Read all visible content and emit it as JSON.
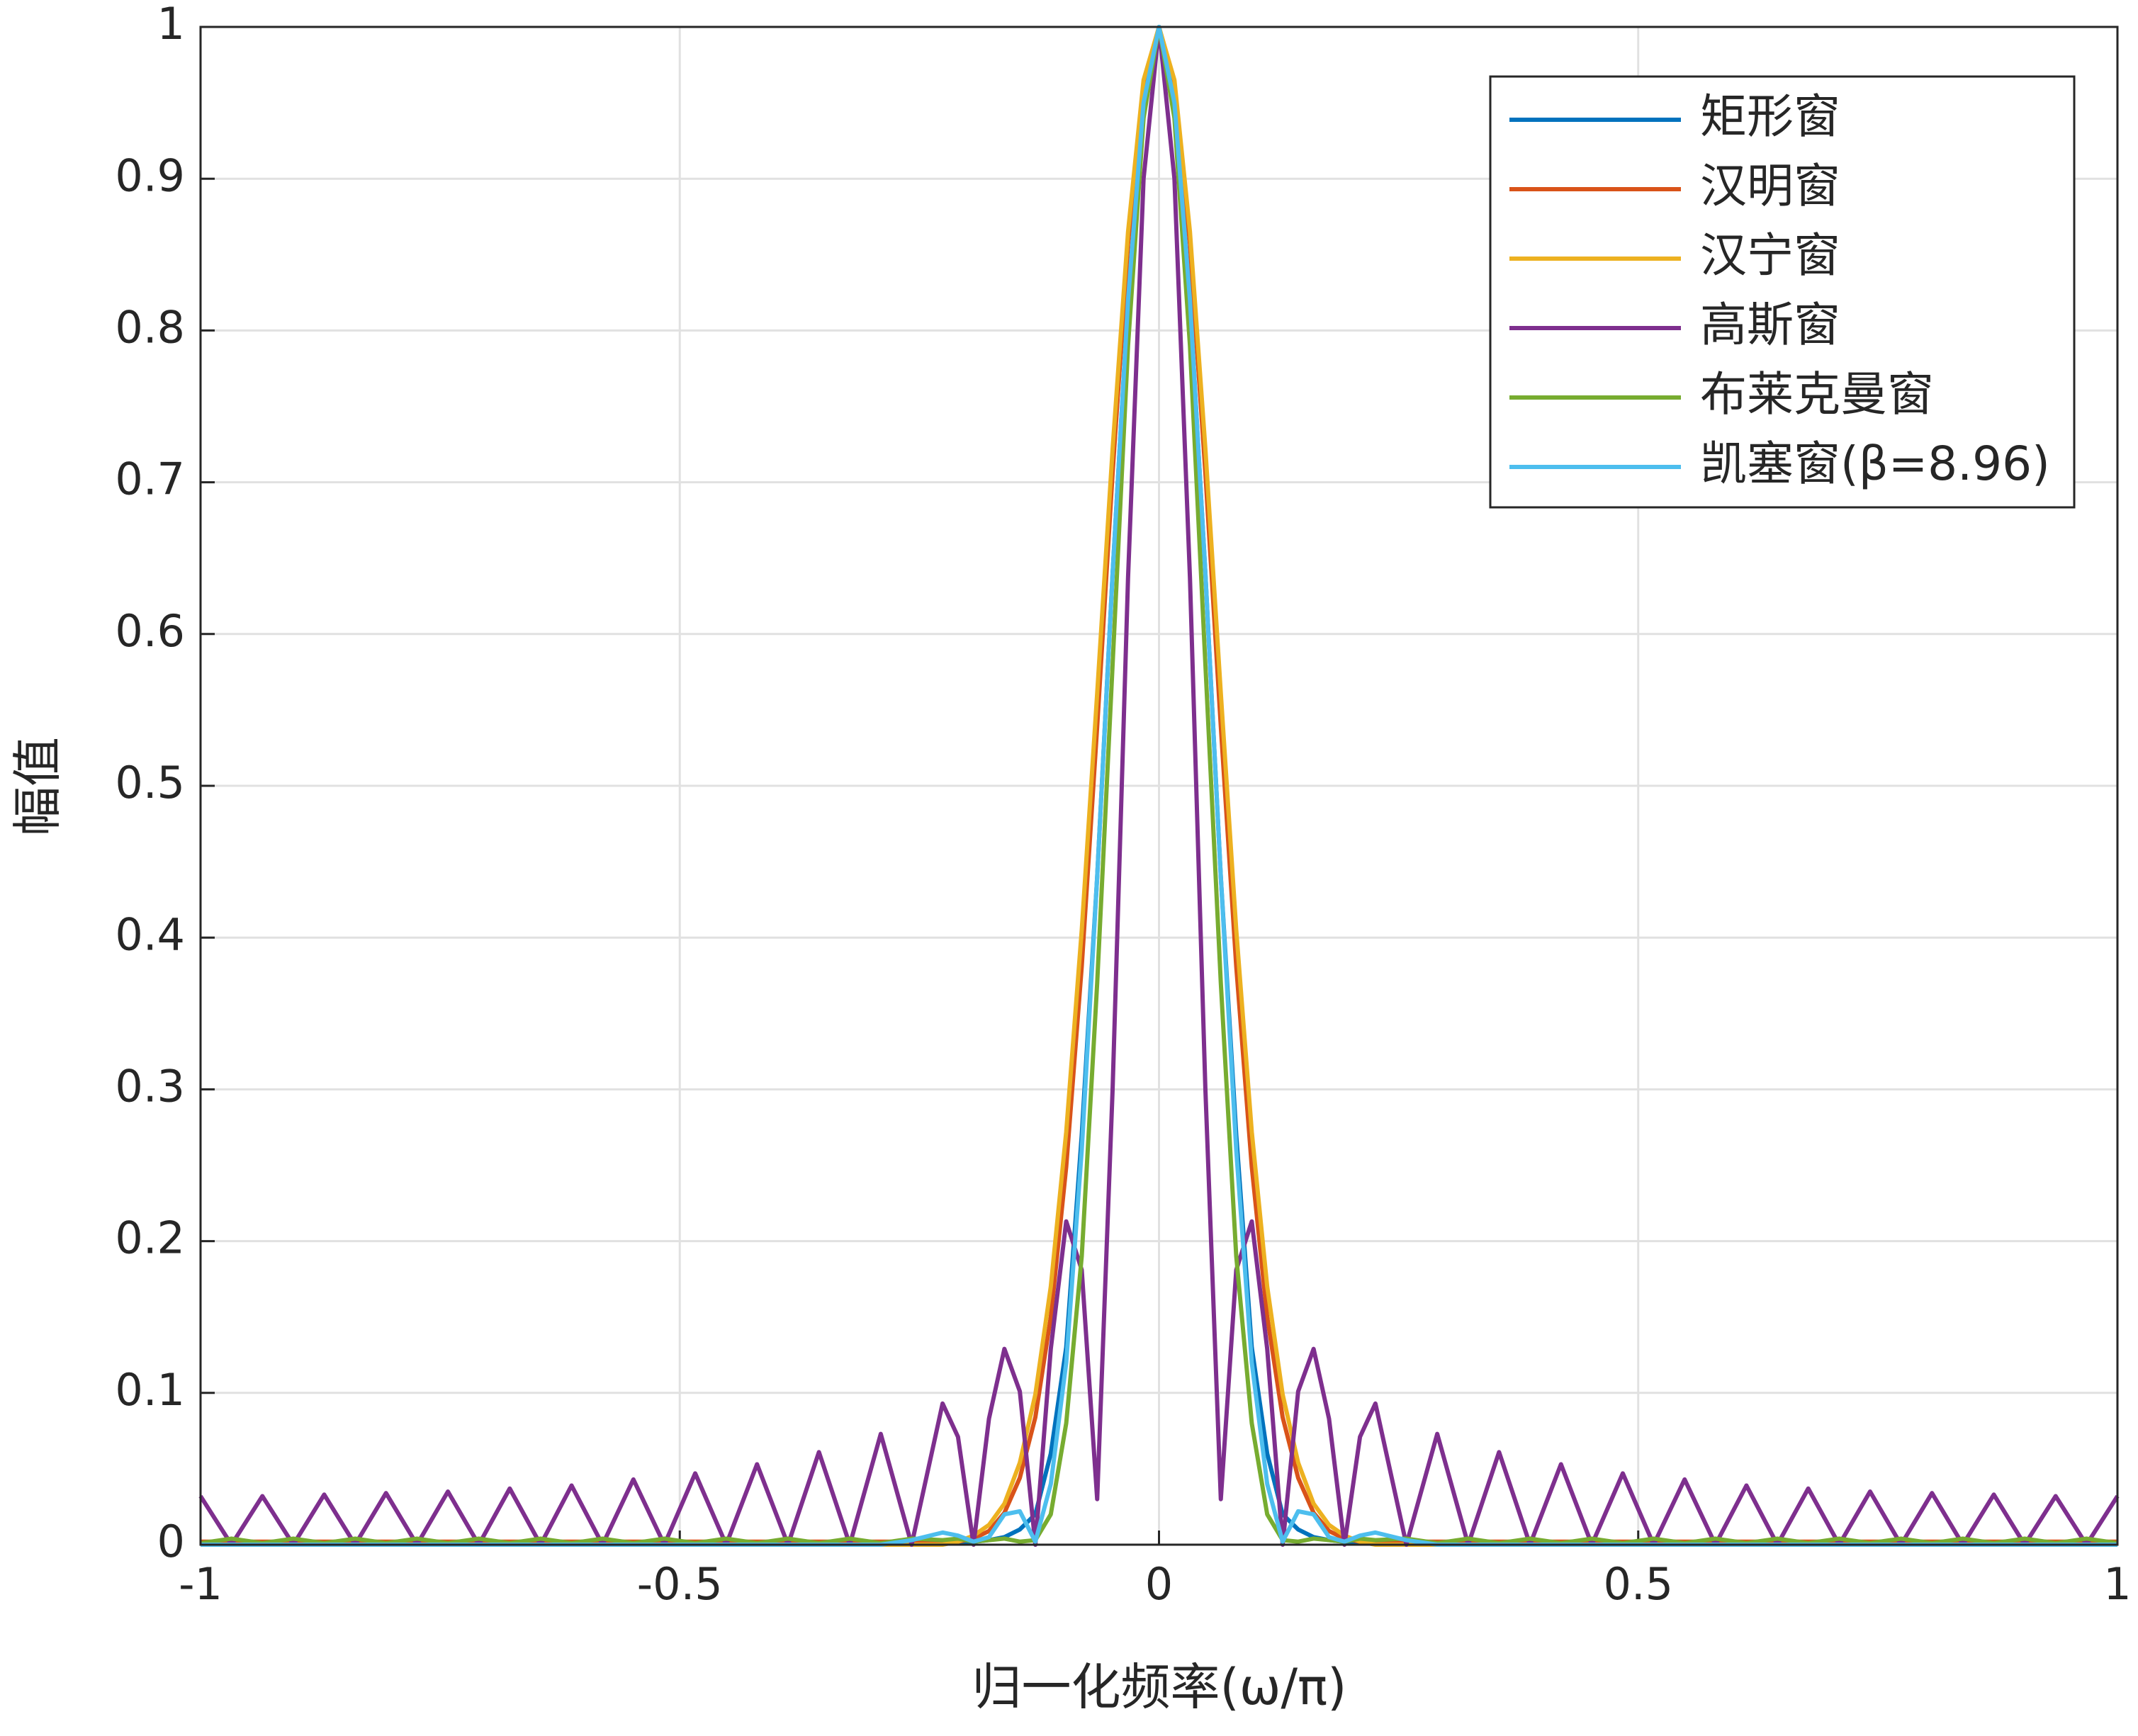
{
  "chart_data": {
    "type": "line",
    "xlabel": "归一化频率(ω/π)",
    "ylabel": "幅值",
    "xlim": [
      -1,
      1
    ],
    "xticks": [
      -1,
      -0.5,
      0,
      0.5,
      1
    ],
    "ylim": [
      0,
      1
    ],
    "yticks": [
      0,
      0.1,
      0.2,
      0.3,
      0.4,
      0.5,
      0.6,
      0.7,
      0.8,
      0.9,
      1
    ],
    "grid": true,
    "legend": "northeast",
    "x": [
      -1,
      -0.9677,
      -0.9355,
      -0.9032,
      -0.871,
      -0.8387,
      -0.8065,
      -0.7742,
      -0.7419,
      -0.7097,
      -0.6774,
      -0.6452,
      -0.6129,
      -0.5806,
      -0.5484,
      -0.5161,
      -0.4839,
      -0.4516,
      -0.4194,
      -0.3871,
      -0.3548,
      -0.3226,
      -0.2903,
      -0.2581,
      -0.2258,
      -0.2097,
      -0.1935,
      -0.1774,
      -0.1613,
      -0.1452,
      -0.129,
      -0.1129,
      -0.0968,
      -0.0806,
      -0.0645,
      -0.0484,
      -0.0323,
      -0.0161,
      0,
      0.0161,
      0.0323,
      0.0484,
      0.0645,
      0.0806,
      0.0968,
      0.1129,
      0.129,
      0.1452,
      0.1613,
      0.1774,
      0.1935,
      0.2097,
      0.2258,
      0.2581,
      0.2903,
      0.3226,
      0.3548,
      0.3871,
      0.4194,
      0.4516,
      0.4839,
      0.5161,
      0.5484,
      0.5806,
      0.6129,
      0.6452,
      0.6774,
      0.7097,
      0.7419,
      0.7742,
      0.8065,
      0.8387,
      0.871,
      0.9032,
      0.9355,
      0.9677,
      1
    ],
    "series": [
      {
        "name": "矩形窗",
        "color": "#0072BD",
        "values": [
          0.001,
          0.001,
          0.001,
          0.001,
          0.001,
          0.001,
          0.001,
          0.001,
          0.001,
          0.001,
          0.001,
          0.001,
          0.001,
          0.001,
          0.001,
          0.001,
          0.001,
          0.001,
          0.001,
          0.001,
          0.001,
          0.001,
          0.001,
          0.001,
          0.002,
          0.002,
          0.002,
          0.003,
          0.005,
          0.01,
          0.02,
          0.06,
          0.13,
          0.27,
          0.44,
          0.64,
          0.82,
          0.95,
          1,
          0.95,
          0.82,
          0.64,
          0.44,
          0.27,
          0.13,
          0.06,
          0.02,
          0.01,
          0.005,
          0.003,
          0.002,
          0.002,
          0.002,
          0.001,
          0.001,
          0.001,
          0.001,
          0.001,
          0.001,
          0.001,
          0.001,
          0.001,
          0.001,
          0.001,
          0.001,
          0.001,
          0.001,
          0.001,
          0.001,
          0.001,
          0.001,
          0.001,
          0.001,
          0.001,
          0.001,
          0.001,
          0.001
        ]
      },
      {
        "name": "汉明窗",
        "color": "#D95319",
        "values": [
          0.002,
          0.002,
          0.002,
          0.002,
          0.002,
          0.002,
          0.002,
          0.002,
          0.002,
          0.002,
          0.002,
          0.002,
          0.002,
          0.002,
          0.002,
          0.002,
          0.002,
          0.002,
          0.002,
          0.002,
          0.002,
          0.002,
          0.002,
          0.002,
          0.002,
          0.002,
          0.004,
          0.009,
          0.021,
          0.044,
          0.084,
          0.15,
          0.249,
          0.381,
          0.539,
          0.706,
          0.857,
          0.962,
          1,
          0.962,
          0.857,
          0.706,
          0.539,
          0.381,
          0.249,
          0.15,
          0.084,
          0.044,
          0.021,
          0.009,
          0.004,
          0.002,
          0.002,
          0.002,
          0.002,
          0.002,
          0.002,
          0.002,
          0.002,
          0.002,
          0.002,
          0.002,
          0.002,
          0.002,
          0.002,
          0.002,
          0.002,
          0.002,
          0.002,
          0.002,
          0.002,
          0.002,
          0.002,
          0.002,
          0.002,
          0.002,
          0.002
        ]
      },
      {
        "name": "汉宁窗",
        "color": "#EDB120",
        "values": [
          0,
          0,
          0,
          0,
          0,
          0,
          0,
          0,
          0,
          0,
          0,
          0,
          0,
          0,
          0,
          0,
          0,
          0,
          0,
          0,
          0,
          0,
          0,
          0,
          0,
          0.002,
          0.006,
          0.013,
          0.027,
          0.054,
          0.099,
          0.17,
          0.272,
          0.405,
          0.561,
          0.722,
          0.865,
          0.965,
          1,
          0.965,
          0.865,
          0.722,
          0.561,
          0.405,
          0.272,
          0.17,
          0.099,
          0.054,
          0.027,
          0.013,
          0.006,
          0.002,
          0,
          0,
          0,
          0,
          0,
          0,
          0,
          0,
          0,
          0,
          0,
          0,
          0,
          0,
          0,
          0,
          0,
          0,
          0,
          0,
          0,
          0,
          0,
          0,
          0
        ]
      },
      {
        "name": "高斯窗",
        "color": "#7E2F8E",
        "values": [
          0.032,
          0,
          0.032,
          0,
          0.033,
          0,
          0.034,
          0,
          0.035,
          0,
          0.037,
          0,
          0.039,
          0,
          0.043,
          0,
          0.047,
          0,
          0.053,
          0,
          0.061,
          0,
          0.073,
          0,
          0.093,
          0.071,
          0,
          0.083,
          0.129,
          0.101,
          0,
          0.129,
          0.213,
          0.181,
          0.03,
          0.3,
          0.637,
          0.9,
          1,
          0.9,
          0.637,
          0.3,
          0.03,
          0.181,
          0.213,
          0.129,
          0,
          0.101,
          0.129,
          0.083,
          0,
          0.071,
          0.093,
          0,
          0.073,
          0,
          0.061,
          0,
          0.053,
          0,
          0.047,
          0,
          0.043,
          0,
          0.039,
          0,
          0.037,
          0,
          0.035,
          0,
          0.034,
          0,
          0.033,
          0,
          0.032,
          0,
          0.032
        ]
      },
      {
        "name": "布莱克曼窗",
        "color": "#77AC30",
        "values": [
          0.001,
          0.004,
          0.001,
          0.004,
          0.001,
          0.004,
          0.001,
          0.004,
          0.001,
          0.004,
          0.001,
          0.004,
          0.001,
          0.004,
          0.001,
          0.004,
          0.001,
          0.004,
          0.001,
          0.004,
          0.001,
          0.004,
          0.001,
          0.004,
          0.003,
          0.004,
          0.002,
          0.003,
          0.004,
          0.002,
          0.003,
          0.02,
          0.08,
          0.19,
          0.37,
          0.58,
          0.79,
          0.94,
          1,
          0.94,
          0.79,
          0.58,
          0.37,
          0.19,
          0.08,
          0.02,
          0.003,
          0.002,
          0.004,
          0.003,
          0.002,
          0.004,
          0.003,
          0.004,
          0.001,
          0.004,
          0.001,
          0.004,
          0.001,
          0.004,
          0.001,
          0.004,
          0.001,
          0.004,
          0.001,
          0.004,
          0.001,
          0.004,
          0.001,
          0.004,
          0.001,
          0.004,
          0.001,
          0.004,
          0.001,
          0.004,
          0.001
        ]
      },
      {
        "name": "凯塞窗(β=8.96)",
        "color": "#4DBEEE",
        "values": [
          0,
          0,
          0,
          0,
          0,
          0,
          0,
          0,
          0,
          0,
          0,
          0,
          0,
          0,
          0,
          0,
          0,
          0,
          0,
          0,
          0,
          0,
          0,
          0.003,
          0.008,
          0.006,
          0.002,
          0.005,
          0.02,
          0.022,
          0.002,
          0.04,
          0.12,
          0.26,
          0.44,
          0.64,
          0.82,
          0.95,
          1,
          0.95,
          0.82,
          0.64,
          0.44,
          0.26,
          0.12,
          0.04,
          0.002,
          0.022,
          0.02,
          0.005,
          0.002,
          0.006,
          0.008,
          0.003,
          0,
          0,
          0,
          0,
          0,
          0,
          0,
          0,
          0,
          0,
          0,
          0,
          0,
          0,
          0,
          0,
          0,
          0,
          0,
          0,
          0,
          0,
          0
        ]
      }
    ]
  }
}
